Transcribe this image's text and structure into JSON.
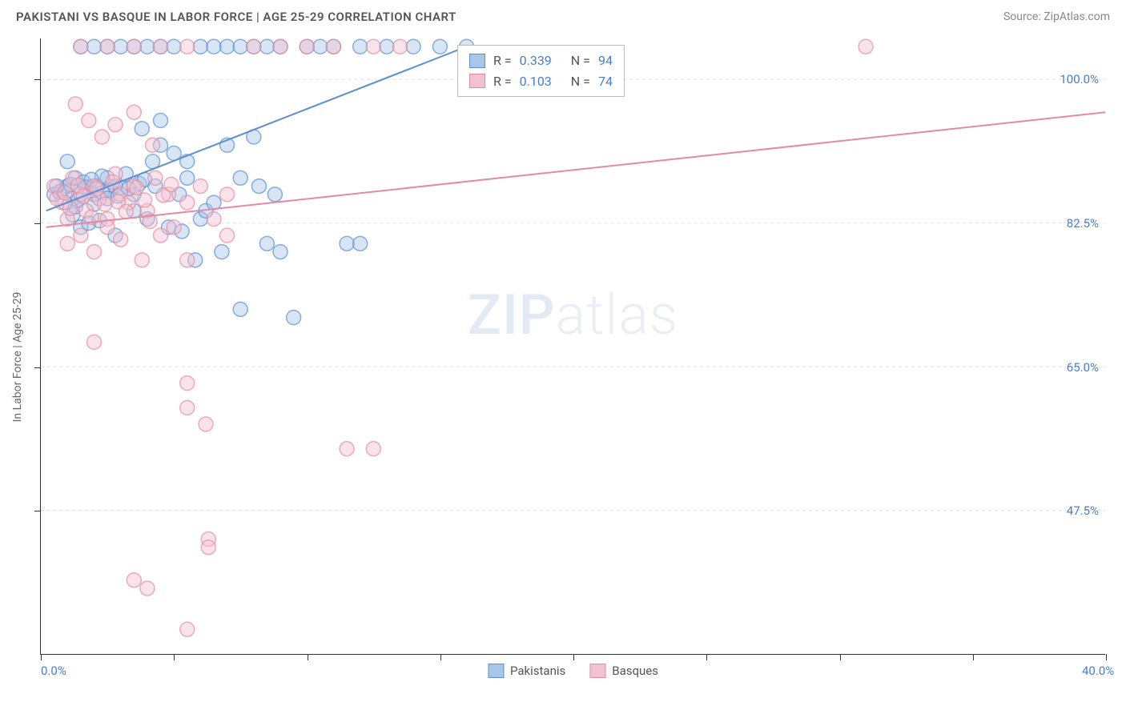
{
  "header": {
    "title": "PAKISTANI VS BASQUE IN LABOR FORCE | AGE 25-29 CORRELATION CHART",
    "source": "Source: ZipAtlas.com"
  },
  "chart": {
    "type": "scatter",
    "ylabel": "In Labor Force | Age 25-29",
    "xlim": [
      0,
      40
    ],
    "ylim": [
      30,
      105
    ],
    "xtick_labels": {
      "0": "0.0%",
      "40": "40.0%"
    },
    "xtick_positions": [
      0,
      5,
      10,
      15,
      20,
      25,
      30,
      35,
      40
    ],
    "ytick_labels": {
      "47.5": "47.5%",
      "65": "65.0%",
      "82.5": "82.5%",
      "100": "100.0%"
    },
    "ytick_positions": [
      47.5,
      65,
      82.5,
      100
    ],
    "grid_color": "#dddddd",
    "background_color": "#ffffff",
    "axis_color": "#333333",
    "marker_radius": 9,
    "marker_opacity": 0.45,
    "series": [
      {
        "name": "Pakistanis",
        "color": "#5b8fcf",
        "fill": "#a9c5e8",
        "stroke": "#5b8fcf",
        "R": 0.339,
        "N": 94,
        "trend_line": {
          "x1": 0.2,
          "y1": 84,
          "x2": 16,
          "y2": 104,
          "width": 2
        },
        "points": [
          [
            0.5,
            86
          ],
          [
            0.8,
            86.5
          ],
          [
            1.0,
            87
          ],
          [
            1.2,
            85.5
          ],
          [
            1.3,
            88
          ],
          [
            1.5,
            86
          ],
          [
            1.6,
            87.5
          ],
          [
            1.8,
            86.8
          ],
          [
            2.0,
            86
          ],
          [
            2.1,
            87
          ],
          [
            2.3,
            86.2
          ],
          [
            2.5,
            88
          ],
          [
            2.6,
            86.5
          ],
          [
            2.8,
            87
          ],
          [
            3.0,
            86.8
          ],
          [
            3.2,
            88.5
          ],
          [
            3.5,
            86
          ],
          [
            3.7,
            87.3
          ],
          [
            4.0,
            83
          ],
          [
            4.2,
            90
          ],
          [
            4.5,
            92
          ],
          [
            5.0,
            91
          ],
          [
            5.2,
            86
          ],
          [
            5.5,
            88
          ],
          [
            5.8,
            78
          ],
          [
            6.0,
            83
          ],
          [
            6.2,
            84
          ],
          [
            6.5,
            85
          ],
          [
            7.0,
            92
          ],
          [
            7.5,
            88
          ],
          [
            8.0,
            93
          ],
          [
            8.5,
            80
          ],
          [
            9.0,
            79
          ],
          [
            9.5,
            71
          ],
          [
            10,
            104
          ],
          [
            4,
            104
          ],
          [
            4.5,
            104
          ],
          [
            5,
            104
          ],
          [
            6,
            104
          ],
          [
            6.5,
            104
          ],
          [
            7,
            104
          ],
          [
            7.5,
            104
          ],
          [
            8,
            104
          ],
          [
            8.5,
            104
          ],
          [
            9,
            104
          ],
          [
            10.5,
            104
          ],
          [
            11,
            104
          ],
          [
            12,
            104
          ],
          [
            13,
            104
          ],
          [
            14,
            104
          ],
          [
            15,
            104
          ],
          [
            16,
            104
          ],
          [
            3,
            104
          ],
          [
            3.5,
            104
          ],
          [
            2.5,
            104
          ],
          [
            1.5,
            104
          ],
          [
            2,
            104
          ],
          [
            1.2,
            83.5
          ],
          [
            1.5,
            82
          ],
          [
            1.8,
            82.5
          ],
          [
            2.2,
            82.8
          ],
          [
            2.8,
            81
          ],
          [
            3.5,
            84
          ],
          [
            4.8,
            82
          ],
          [
            5.3,
            81.5
          ],
          [
            6.8,
            79
          ],
          [
            7.5,
            72
          ],
          [
            8.2,
            87
          ],
          [
            8.8,
            86
          ],
          [
            3.8,
            94
          ],
          [
            4.5,
            95
          ],
          [
            5.5,
            90
          ],
          [
            1.0,
            90
          ],
          [
            1.3,
            84.5
          ],
          [
            0.9,
            85
          ],
          [
            2.0,
            84.8
          ],
          [
            2.5,
            85.5
          ],
          [
            0.7,
            86.3
          ],
          [
            1.1,
            87.2
          ],
          [
            1.7,
            86.9
          ],
          [
            2.3,
            88.2
          ],
          [
            2.9,
            85.8
          ],
          [
            3.3,
            86.7
          ],
          [
            3.9,
            87.8
          ],
          [
            1.4,
            85.3
          ],
          [
            1.9,
            87.8
          ],
          [
            0.6,
            87
          ],
          [
            4.3,
            87
          ],
          [
            11.5,
            80
          ],
          [
            12,
            80
          ]
        ]
      },
      {
        "name": "Basques",
        "color": "#e28ba3",
        "fill": "#f3c2d0",
        "stroke": "#e28ba3",
        "R": 0.103,
        "N": 74,
        "trend_line": {
          "x1": 0.2,
          "y1": 82,
          "x2": 40,
          "y2": 96,
          "width": 2
        },
        "points": [
          [
            0.5,
            87
          ],
          [
            0.8,
            85
          ],
          [
            1.0,
            83
          ],
          [
            1.2,
            88
          ],
          [
            1.5,
            86
          ],
          [
            1.7,
            84
          ],
          [
            2.0,
            87
          ],
          [
            2.2,
            85.5
          ],
          [
            2.5,
            83
          ],
          [
            2.8,
            88.5
          ],
          [
            3.0,
            86
          ],
          [
            3.3,
            85
          ],
          [
            3.5,
            87
          ],
          [
            4.0,
            84
          ],
          [
            4.3,
            88
          ],
          [
            4.8,
            86
          ],
          [
            5.0,
            82
          ],
          [
            5.5,
            85
          ],
          [
            6.0,
            87
          ],
          [
            6.5,
            83
          ],
          [
            7.0,
            86
          ],
          [
            1.3,
            97
          ],
          [
            1.8,
            95
          ],
          [
            2.3,
            93
          ],
          [
            2.8,
            94.5
          ],
          [
            3.5,
            96
          ],
          [
            4.2,
            92
          ],
          [
            1.0,
            80
          ],
          [
            1.5,
            81
          ],
          [
            2.0,
            79
          ],
          [
            2.5,
            82
          ],
          [
            3.0,
            80.5
          ],
          [
            3.8,
            78
          ],
          [
            4.5,
            81
          ],
          [
            5.5,
            78
          ],
          [
            5.5,
            63
          ],
          [
            5.5,
            60
          ],
          [
            6.2,
            58
          ],
          [
            6.3,
            44
          ],
          [
            6.3,
            43
          ],
          [
            5.5,
            33
          ],
          [
            4.0,
            38
          ],
          [
            3.5,
            39
          ],
          [
            7.0,
            81
          ],
          [
            2.0,
            68
          ],
          [
            11.5,
            55
          ],
          [
            12.5,
            55
          ],
          [
            1.5,
            104
          ],
          [
            2.5,
            104
          ],
          [
            3.5,
            104
          ],
          [
            4.5,
            104
          ],
          [
            5.5,
            104
          ],
          [
            8,
            104
          ],
          [
            9,
            104
          ],
          [
            10,
            104
          ],
          [
            11,
            104
          ],
          [
            12.5,
            104
          ],
          [
            13.5,
            104
          ],
          [
            31,
            104
          ],
          [
            0.6,
            85.5
          ],
          [
            0.9,
            86.2
          ],
          [
            1.1,
            84.3
          ],
          [
            1.4,
            87.1
          ],
          [
            1.6,
            85.8
          ],
          [
            1.9,
            83.2
          ],
          [
            2.1,
            86.7
          ],
          [
            2.4,
            84.8
          ],
          [
            2.7,
            87.5
          ],
          [
            2.9,
            85.1
          ],
          [
            3.2,
            83.9
          ],
          [
            3.6,
            86.8
          ],
          [
            3.9,
            85.3
          ],
          [
            4.1,
            82.7
          ],
          [
            4.6,
            85.9
          ],
          [
            4.9,
            87.2
          ]
        ]
      }
    ],
    "legend": {
      "bottom_labels": [
        "Pakistanis",
        "Basques"
      ]
    },
    "watermark": {
      "bold": "ZIP",
      "light": "atlas"
    }
  }
}
